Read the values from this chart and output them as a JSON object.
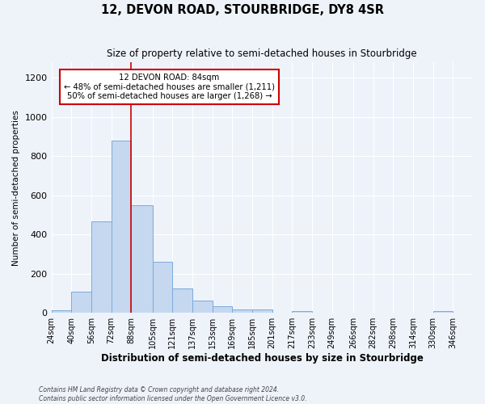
{
  "title": "12, DEVON ROAD, STOURBRIDGE, DY8 4SR",
  "subtitle": "Size of property relative to semi-detached houses in Stourbridge",
  "xlabel": "Distribution of semi-detached houses by size in Stourbridge",
  "ylabel": "Number of semi-detached properties",
  "bin_labels": [
    "24sqm",
    "40sqm",
    "56sqm",
    "72sqm",
    "88sqm",
    "105sqm",
    "121sqm",
    "137sqm",
    "153sqm",
    "169sqm",
    "185sqm",
    "201sqm",
    "217sqm",
    "233sqm",
    "249sqm",
    "266sqm",
    "282sqm",
    "298sqm",
    "314sqm",
    "330sqm",
    "346sqm"
  ],
  "bin_edges": [
    24,
    40,
    56,
    72,
    88,
    105,
    121,
    137,
    153,
    169,
    185,
    201,
    217,
    233,
    249,
    266,
    282,
    298,
    314,
    330,
    346
  ],
  "bar_heights": [
    15,
    110,
    465,
    880,
    550,
    260,
    125,
    63,
    35,
    18,
    18,
    0,
    8,
    0,
    0,
    0,
    0,
    0,
    0,
    8,
    0
  ],
  "bar_color": "#c5d8f0",
  "bar_edge_color": "#7aabdb",
  "vline_x": 88,
  "vline_color": "#cc0000",
  "annotation_line1": "12 DEVON ROAD: 84sqm",
  "annotation_line2": "← 48% of semi-detached houses are smaller (1,211)",
  "annotation_line3": "50% of semi-detached houses are larger (1,268) →",
  "annotation_box_color": "#ffffff",
  "annotation_box_edge": "#cc0000",
  "ylim": [
    0,
    1280
  ],
  "yticks": [
    0,
    200,
    400,
    600,
    800,
    1000,
    1200
  ],
  "footer_line1": "Contains HM Land Registry data © Crown copyright and database right 2024.",
  "footer_line2": "Contains public sector information licensed under the Open Government Licence v3.0.",
  "background_color": "#eef3fa",
  "grid_color": "#ffffff"
}
